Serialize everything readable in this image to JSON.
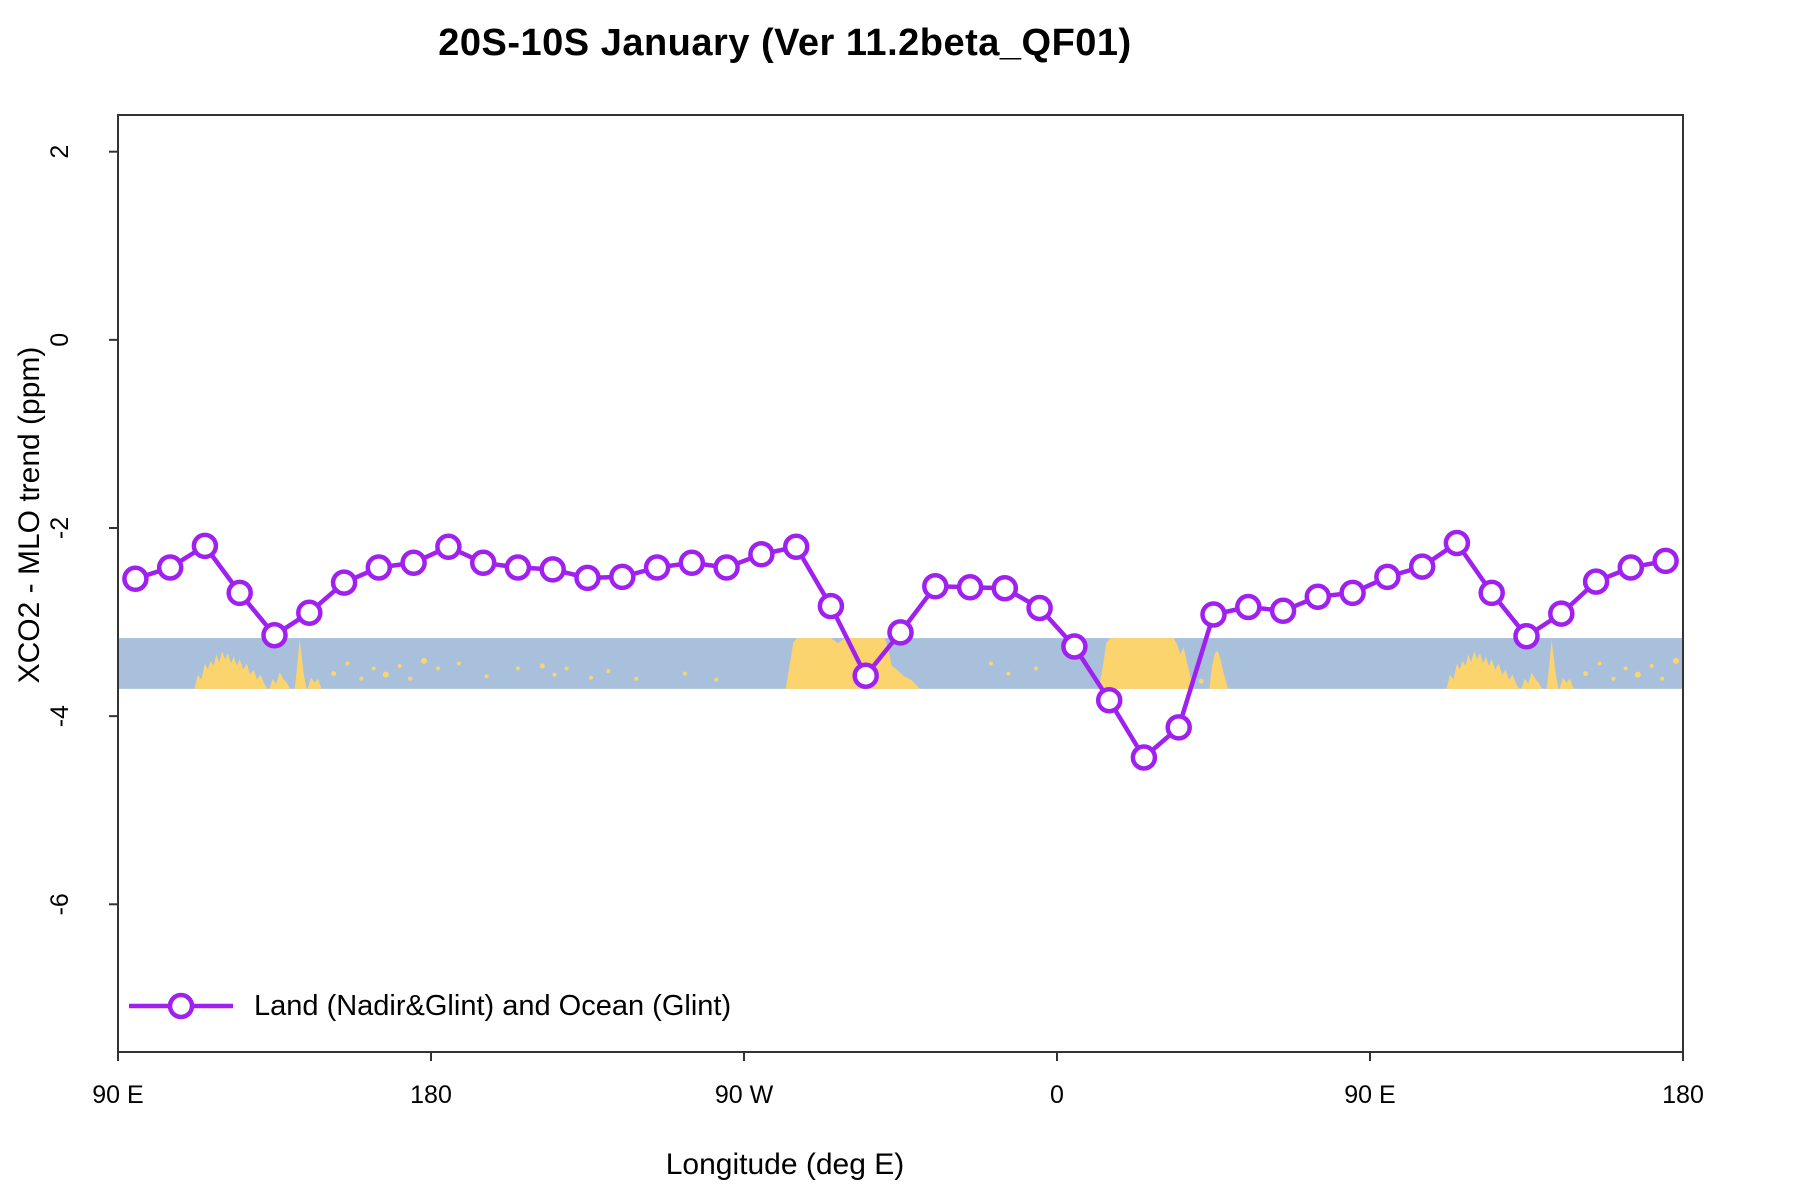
{
  "title": "20S-10S January (Ver 11.2beta_QF01)",
  "legend": {
    "label": "Land (Nadir&Glint) and Ocean (Glint)"
  },
  "chart_data": {
    "type": "line",
    "title": "20S-10S January (Ver 11.2beta_QF01)",
    "xlabel": "Longitude (deg E)",
    "ylabel": "XCO2 - MLO trend (ppm)",
    "xlim": [
      90,
      540
    ],
    "ylim": [
      -7.57,
      2.39
    ],
    "grid": false,
    "legend_position": "bottom-left",
    "x_ticks": [
      {
        "deg": 90,
        "label": "90 E"
      },
      {
        "deg": 180,
        "label": "180"
      },
      {
        "deg": 270,
        "label": "90 W"
      },
      {
        "deg": 360,
        "label": "0"
      },
      {
        "deg": 450,
        "label": "90 E"
      },
      {
        "deg": 540,
        "label": "180"
      }
    ],
    "y_ticks": [
      {
        "value": 2,
        "label": "2"
      },
      {
        "value": 0,
        "label": "0"
      },
      {
        "value": -2,
        "label": "-2"
      },
      {
        "value": -4,
        "label": "-4"
      },
      {
        "value": -6,
        "label": "-6"
      }
    ],
    "series": [
      {
        "name": "Land (Nadir&Glint) and Ocean (Glint)",
        "marker": "open-circle",
        "x": [
          95,
          105,
          115,
          125,
          135,
          145,
          155,
          165,
          175,
          185,
          195,
          205,
          215,
          225,
          235,
          245,
          255,
          265,
          275,
          285,
          295,
          305,
          315,
          325,
          335,
          345,
          355,
          365,
          375,
          385,
          395,
          405,
          415,
          425,
          435,
          445,
          455,
          465,
          475,
          485,
          495,
          505,
          515,
          525,
          535
        ],
        "y": [
          -2.54,
          -2.42,
          -2.19,
          -2.69,
          -3.14,
          -2.9,
          -2.58,
          -2.42,
          -2.37,
          -2.2,
          -2.37,
          -2.42,
          -2.44,
          -2.53,
          -2.52,
          -2.42,
          -2.37,
          -2.42,
          -2.28,
          -2.2,
          -2.83,
          -3.57,
          -3.11,
          -2.62,
          -2.63,
          -2.64,
          -2.85,
          -3.26,
          -3.83,
          -4.44,
          -4.12,
          -2.92,
          -2.84,
          -2.88,
          -2.73,
          -2.69,
          -2.52,
          -2.41,
          -2.16,
          -2.69,
          -3.15,
          -2.91,
          -2.57,
          -2.42,
          -2.35
        ]
      }
    ],
    "band": {
      "description": "map strip of 20S-10S latitude band, ocean with land silhouettes",
      "y_top": -3.17,
      "y_bottom": -3.71,
      "land_polygons": [
        [
          [
            112,
            1
          ],
          [
            113,
            0.72
          ],
          [
            114,
            0.82
          ],
          [
            115,
            0.5
          ],
          [
            115.8,
            0.62
          ],
          [
            116.6,
            0.45
          ],
          [
            117.5,
            0.55
          ],
          [
            118.3,
            0.32
          ],
          [
            119,
            0.48
          ],
          [
            120,
            0.26
          ],
          [
            120.8,
            0.42
          ],
          [
            121.6,
            0.3
          ],
          [
            122.5,
            0.5
          ],
          [
            123.3,
            0.36
          ],
          [
            124.2,
            0.55
          ],
          [
            125,
            0.42
          ],
          [
            126,
            0.62
          ],
          [
            127,
            0.5
          ],
          [
            128,
            0.72
          ],
          [
            129,
            0.62
          ],
          [
            130,
            0.82
          ],
          [
            131,
            0.72
          ],
          [
            132,
            0.9
          ],
          [
            133,
            1
          ]
        ],
        [
          [
            133.5,
            1
          ],
          [
            134.5,
            0.8
          ],
          [
            135.5,
            0.9
          ],
          [
            136.5,
            0.68
          ],
          [
            137.5,
            0.8
          ],
          [
            138.5,
            0.88
          ],
          [
            139.5,
            1
          ]
        ],
        [
          [
            140.8,
            1
          ],
          [
            141.6,
            0.5
          ],
          [
            142.2,
            0.03
          ],
          [
            142.8,
            0.35
          ],
          [
            143.4,
            0.7
          ],
          [
            144.2,
            1
          ]
        ],
        [
          [
            144.5,
            1
          ],
          [
            145.5,
            0.78
          ],
          [
            146.5,
            0.88
          ],
          [
            147.5,
            0.8
          ],
          [
            148.5,
            1
          ]
        ],
        [
          [
            282,
            1
          ],
          [
            283.2,
            0.5
          ],
          [
            284.2,
            0.08
          ],
          [
            285.2,
            0
          ],
          [
            295,
            0
          ],
          [
            297,
            0.1
          ],
          [
            299,
            0
          ],
          [
            310.5,
            0
          ],
          [
            311.5,
            0.22
          ],
          [
            312.5,
            0.55
          ],
          [
            314,
            0.62
          ],
          [
            316,
            0.75
          ],
          [
            318,
            0.82
          ],
          [
            319.5,
            0.92
          ],
          [
            320.5,
            1
          ]
        ],
        [
          [
            372,
            1
          ],
          [
            373.2,
            0.55
          ],
          [
            374.2,
            0.1
          ],
          [
            375.2,
            0
          ],
          [
            393.5,
            0
          ],
          [
            394.5,
            0.12
          ],
          [
            395.5,
            0.32
          ],
          [
            396.4,
            0.18
          ],
          [
            397.2,
            0.42
          ],
          [
            398.2,
            0.72
          ],
          [
            399.2,
            1
          ]
        ],
        [
          [
            403.8,
            1
          ],
          [
            404.6,
            0.55
          ],
          [
            405.4,
            0.3
          ],
          [
            406.2,
            0.25
          ],
          [
            407,
            0.42
          ],
          [
            407.8,
            0.65
          ],
          [
            408.6,
            0.85
          ],
          [
            409.2,
            1
          ]
        ],
        [
          [
            472,
            1
          ],
          [
            473,
            0.72
          ],
          [
            474,
            0.82
          ],
          [
            475,
            0.5
          ],
          [
            475.8,
            0.62
          ],
          [
            476.6,
            0.45
          ],
          [
            477.5,
            0.55
          ],
          [
            478.3,
            0.32
          ],
          [
            479,
            0.48
          ],
          [
            480,
            0.26
          ],
          [
            480.8,
            0.42
          ],
          [
            481.6,
            0.3
          ],
          [
            482.5,
            0.5
          ],
          [
            483.3,
            0.36
          ],
          [
            484.2,
            0.55
          ],
          [
            485,
            0.42
          ],
          [
            486,
            0.62
          ],
          [
            487,
            0.5
          ],
          [
            488,
            0.72
          ],
          [
            489,
            0.62
          ],
          [
            490,
            0.82
          ],
          [
            491,
            0.72
          ],
          [
            492,
            0.9
          ],
          [
            493,
            1
          ]
        ],
        [
          [
            493.5,
            1
          ],
          [
            494.5,
            0.8
          ],
          [
            495.5,
            0.9
          ],
          [
            496.5,
            0.68
          ],
          [
            497.5,
            0.8
          ],
          [
            498.5,
            0.88
          ],
          [
            499.5,
            1
          ]
        ],
        [
          [
            500.8,
            1
          ],
          [
            501.6,
            0.5
          ],
          [
            502.2,
            0.03
          ],
          [
            502.8,
            0.35
          ],
          [
            503.4,
            0.7
          ],
          [
            504.2,
            1
          ]
        ],
        [
          [
            504.5,
            1
          ],
          [
            505.5,
            0.78
          ],
          [
            506.5,
            0.88
          ],
          [
            507.5,
            0.8
          ],
          [
            508.5,
            1
          ]
        ]
      ],
      "land_dots": [
        [
          152,
          0.7,
          2.5
        ],
        [
          156,
          0.5,
          2
        ],
        [
          160,
          0.8,
          2
        ],
        [
          163.5,
          0.6,
          2
        ],
        [
          167,
          0.72,
          3
        ],
        [
          171,
          0.55,
          2
        ],
        [
          174,
          0.8,
          2
        ],
        [
          178,
          0.45,
          3
        ],
        [
          182,
          0.6,
          2
        ],
        [
          188,
          0.5,
          2
        ],
        [
          196,
          0.75,
          2
        ],
        [
          205,
          0.6,
          2
        ],
        [
          212,
          0.55,
          2.5
        ],
        [
          215.5,
          0.72,
          2
        ],
        [
          219,
          0.6,
          2
        ],
        [
          226,
          0.78,
          2
        ],
        [
          231,
          0.65,
          2
        ],
        [
          239,
          0.8,
          2
        ],
        [
          253,
          0.7,
          2
        ],
        [
          262,
          0.82,
          2
        ],
        [
          341,
          0.5,
          2
        ],
        [
          346,
          0.7,
          2
        ],
        [
          354,
          0.6,
          2
        ],
        [
          401.5,
          0.85,
          2.5
        ],
        [
          512,
          0.7,
          2.5
        ],
        [
          516,
          0.5,
          2
        ],
        [
          520,
          0.8,
          2
        ],
        [
          523.5,
          0.6,
          2
        ],
        [
          527,
          0.72,
          3
        ],
        [
          531,
          0.55,
          2
        ],
        [
          534,
          0.8,
          2
        ],
        [
          538,
          0.45,
          3
        ]
      ]
    },
    "colors": {
      "series": "#A020F0",
      "ocean": "#A9C0DC",
      "land": "#FBD46E",
      "axis": "#333333",
      "text": "#000000"
    }
  }
}
